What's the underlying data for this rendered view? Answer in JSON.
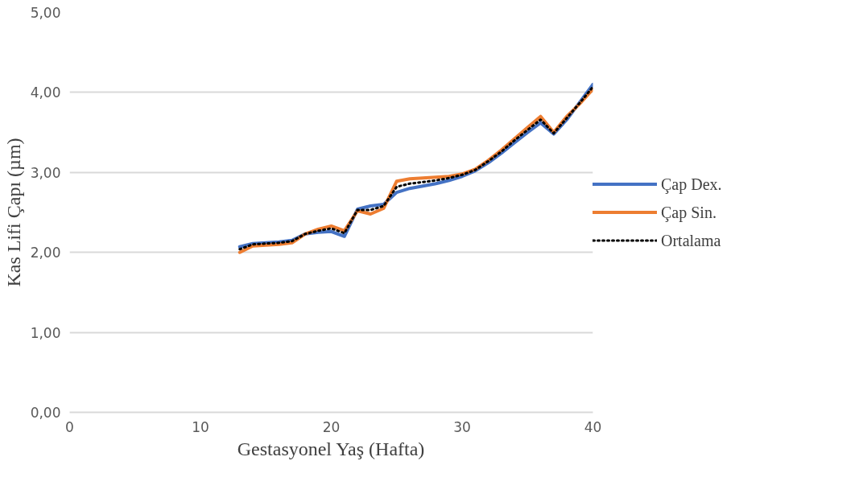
{
  "chart_data": {
    "type": "line",
    "xlabel": "Gestasyonel Yaş (Hafta)",
    "ylabel": "Kas Lifi Çapı (µm)",
    "x": [
      13,
      14,
      15,
      16,
      17,
      18,
      19,
      20,
      21,
      22,
      23,
      24,
      25,
      26,
      27,
      28,
      29,
      30,
      31,
      32,
      33,
      34,
      35,
      36,
      37,
      38,
      39,
      40
    ],
    "series": [
      {
        "name": "Çap Dex.",
        "color": "#4472c4",
        "line_style": "solid",
        "values": [
          2.07,
          2.11,
          2.12,
          2.13,
          2.15,
          2.23,
          2.25,
          2.26,
          2.2,
          2.54,
          2.58,
          2.6,
          2.75,
          2.8,
          2.83,
          2.86,
          2.9,
          2.95,
          3.02,
          3.12,
          3.24,
          3.37,
          3.5,
          3.62,
          3.48,
          3.66,
          3.88,
          4.1
        ]
      },
      {
        "name": "Çap Sin.",
        "color": "#ed7d31",
        "line_style": "solid",
        "values": [
          2.0,
          2.08,
          2.09,
          2.1,
          2.12,
          2.23,
          2.29,
          2.33,
          2.27,
          2.52,
          2.48,
          2.55,
          2.89,
          2.92,
          2.93,
          2.94,
          2.95,
          2.98,
          3.04,
          3.15,
          3.28,
          3.42,
          3.56,
          3.7,
          3.5,
          3.7,
          3.86,
          4.04
        ]
      },
      {
        "name": "Ortalama",
        "color": "#000000",
        "line_style": "dotted",
        "values": [
          2.04,
          2.1,
          2.11,
          2.12,
          2.14,
          2.23,
          2.27,
          2.3,
          2.24,
          2.53,
          2.53,
          2.58,
          2.82,
          2.86,
          2.88,
          2.9,
          2.93,
          2.97,
          3.03,
          3.14,
          3.26,
          3.4,
          3.53,
          3.66,
          3.49,
          3.68,
          3.87,
          4.07
        ]
      }
    ],
    "xlim": [
      0,
      40
    ],
    "xticks": [
      0,
      10,
      20,
      30,
      40
    ],
    "ylim": [
      0,
      5
    ],
    "yticks": [
      {
        "value": 0,
        "label": "0,00"
      },
      {
        "value": 1,
        "label": "1,00"
      },
      {
        "value": 2,
        "label": "2,00"
      },
      {
        "value": 3,
        "label": "3,00"
      },
      {
        "value": 4,
        "label": "4,00"
      },
      {
        "value": 5,
        "label": "5,00"
      }
    ],
    "grid": "y",
    "legend": "right",
    "marker": "none"
  }
}
